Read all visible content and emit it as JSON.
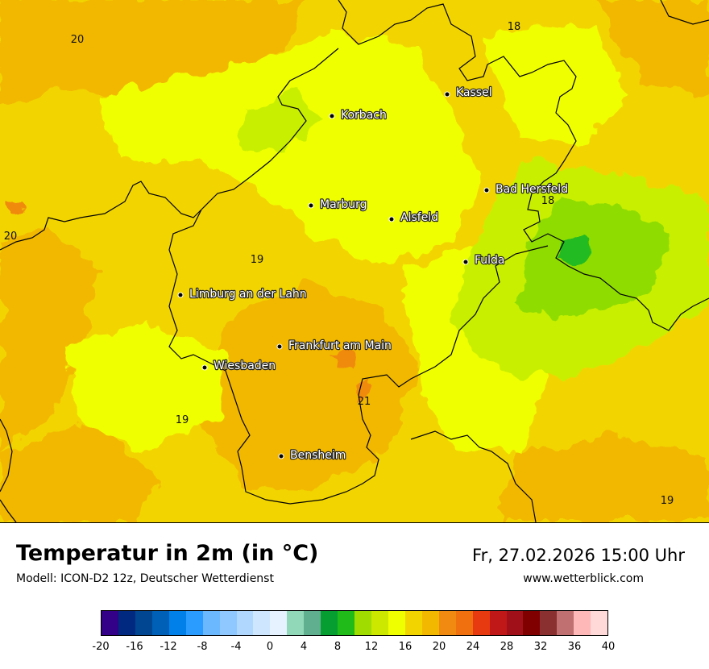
{
  "map": {
    "cities": [
      {
        "name": "Kassel"
      },
      {
        "name": "Korbach"
      },
      {
        "name": "Bad Hersfeld"
      },
      {
        "name": "Marburg"
      },
      {
        "name": "Alsfeld"
      },
      {
        "name": "Fulda"
      },
      {
        "name": "Limburg an der Lahn"
      },
      {
        "name": "Frankfurt am Main"
      },
      {
        "name": "Wiesbaden"
      },
      {
        "name": "Bensheim"
      }
    ],
    "iso_labels": [
      "20",
      "18",
      "20",
      "19",
      "18",
      "21",
      "19",
      "19"
    ],
    "colors": {
      "base": "#f2d500",
      "yellow": "#f0ff00",
      "orange": "#f2b800",
      "light_green": "#c9ef00",
      "green": "#8fdc00",
      "dark_green": "#22bb22",
      "hot": "#f08a10",
      "border": "#000000"
    }
  },
  "footer": {
    "title": "Temperatur in 2m (in °C)",
    "model": "Modell: ICON-D2 12z, Deutscher Wetterdienst",
    "datetime": "Fr, 27.02.2026 15:00 Uhr",
    "website": "www.wetterblick.com"
  },
  "legend": {
    "colors": [
      "#330088",
      "#00297f",
      "#004690",
      "#0060b8",
      "#0080e8",
      "#2a9cff",
      "#6cb8ff",
      "#8ec8ff",
      "#b0d8ff",
      "#cfe6ff",
      "#e6f2ff",
      "#90d8b8",
      "#60b090",
      "#069e30",
      "#20bb18",
      "#a0dc00",
      "#cce800",
      "#f0ff00",
      "#f2d500",
      "#f2b800",
      "#f08a10",
      "#f07010",
      "#e83a10",
      "#c01818",
      "#a01018",
      "#800000",
      "#8a3030",
      "#c07070",
      "#ffb8b8",
      "#ffd8d8"
    ],
    "ticks": [
      "-20",
      "-16",
      "-12",
      "-8",
      "-4",
      "0",
      "4",
      "8",
      "12",
      "16",
      "20",
      "24",
      "28",
      "32",
      "36",
      "40"
    ]
  }
}
